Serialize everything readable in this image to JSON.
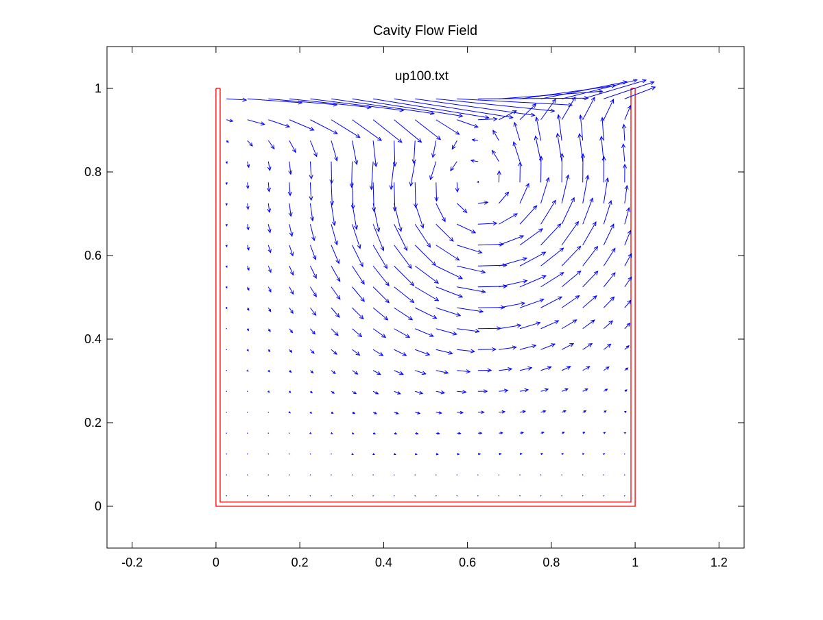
{
  "chart_data": {
    "type": "quiver",
    "title": "Cavity Flow Field",
    "annotation": "up100.txt",
    "xlabel": "",
    "ylabel": "",
    "xlim": [
      -0.26,
      1.26
    ],
    "ylim": [
      -0.1,
      1.1
    ],
    "xticks": [
      -0.2,
      0,
      0.2,
      0.4,
      0.6,
      0.8,
      1,
      1.2
    ],
    "yticks": [
      0,
      0.2,
      0.4,
      0.6,
      0.8,
      1
    ],
    "xtick_labels": [
      "-0.2",
      "0",
      "0.2",
      "0.4",
      "0.6",
      "0.8",
      "1",
      "1.2"
    ],
    "ytick_labels": [
      "0",
      "0.2",
      "0.4",
      "0.6",
      "0.8",
      "1"
    ],
    "grid": false,
    "box": true,
    "cavity_wall": {
      "outer": [
        [
          0,
          1
        ],
        [
          0,
          0
        ],
        [
          1,
          0
        ],
        [
          1,
          1
        ]
      ],
      "inner": [
        [
          0.01,
          1
        ],
        [
          0.01,
          0.01
        ],
        [
          0.99,
          0.01
        ],
        [
          0.99,
          1
        ]
      ],
      "cap_left": [
        [
          0,
          1
        ],
        [
          0.01,
          1
        ]
      ],
      "cap_right": [
        [
          0.99,
          1
        ],
        [
          1,
          1
        ]
      ]
    },
    "vector_field": {
      "grid": {
        "nx": 20,
        "ny": 21,
        "x_start": 0.025,
        "x_step": 0.05,
        "y_start": 0.025,
        "y_step": 0.05
      },
      "lid_velocity": 1.0,
      "vortex_center": [
        0.62,
        0.77
      ],
      "arrow_scale": 0.06
    },
    "colors": {
      "vectors": "#0000ff",
      "walls": "#ff0000",
      "axes": "#000000",
      "background": "#ffffff"
    }
  }
}
